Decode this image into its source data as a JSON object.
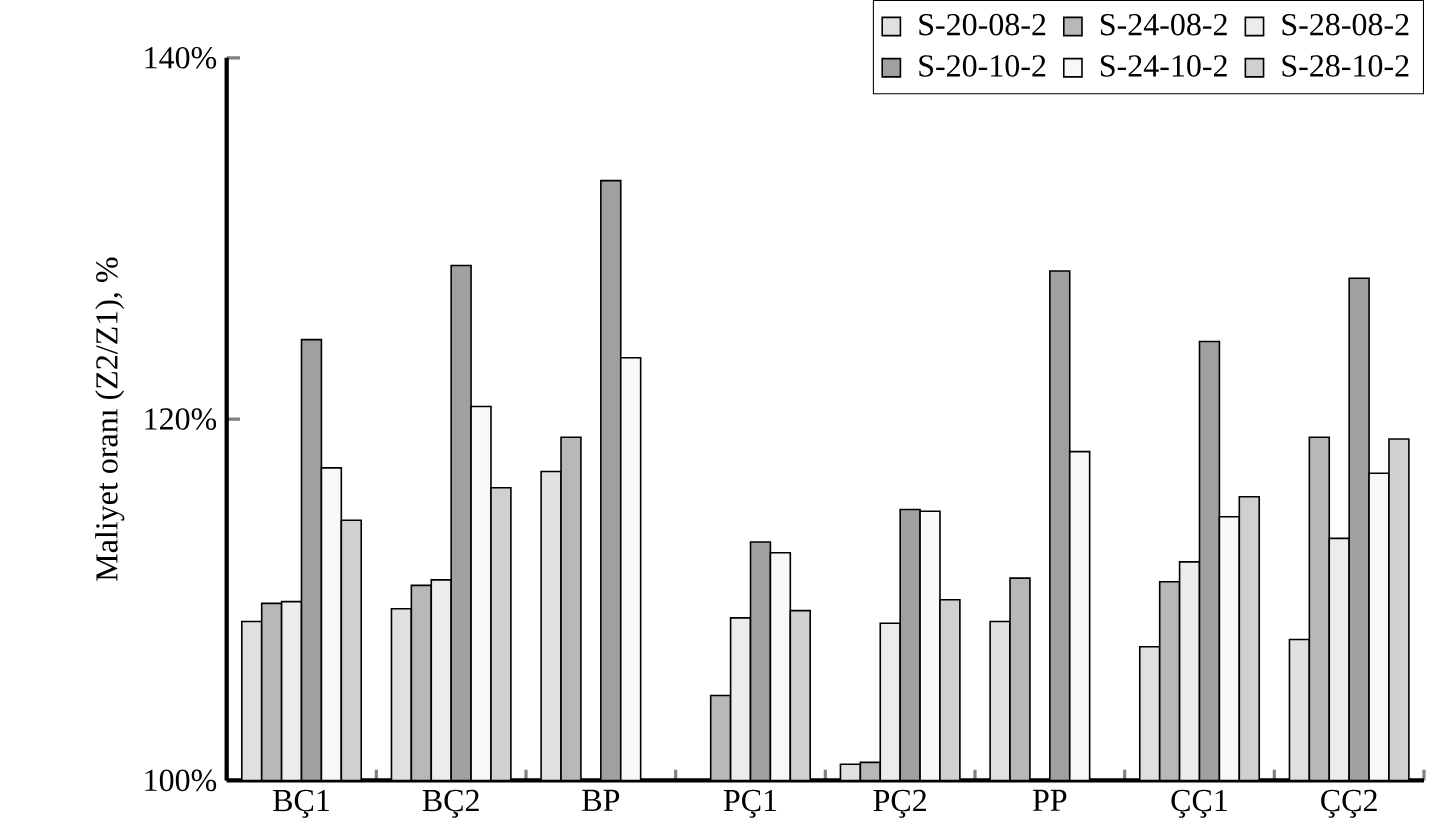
{
  "chart_data": {
    "type": "bar",
    "ylabel": "Maliyet oranı  (Z2/Z1), %",
    "categories": [
      "BÇ1",
      "BÇ2",
      "BP",
      "PÇ1",
      "PÇ2",
      "PP",
      "ÇÇ1",
      "ÇÇ2"
    ],
    "series": [
      {
        "name": "S-20-08-2",
        "color": "#e0e0e0",
        "values": [
          108.8,
          109.5,
          117.1,
          null,
          100.9,
          108.8,
          107.4,
          107.8
        ]
      },
      {
        "name": "S-24-08-2",
        "color": "#b8b8b8",
        "values": [
          109.8,
          110.8,
          119.0,
          104.7,
          101.0,
          111.2,
          111.0,
          119.0
        ]
      },
      {
        "name": "S-28-08-2",
        "color": "#ececec",
        "values": [
          109.9,
          111.1,
          null,
          109.0,
          108.7,
          null,
          112.1,
          113.4
        ]
      },
      {
        "name": "S-20-10-2",
        "color": "#a0a0a0",
        "values": [
          124.4,
          128.5,
          133.2,
          113.2,
          115.0,
          128.2,
          124.3,
          127.8
        ]
      },
      {
        "name": "S-24-10-2",
        "color": "#f8f8f8",
        "values": [
          117.3,
          120.7,
          123.4,
          112.6,
          114.9,
          118.2,
          114.6,
          117.0
        ]
      },
      {
        "name": "S-28-10-2",
        "color": "#d0d0d0",
        "values": [
          114.4,
          116.2,
          null,
          109.4,
          110.0,
          null,
          115.7,
          118.9
        ]
      }
    ],
    "ylim": [
      100,
      140
    ],
    "yticks": [
      {
        "value": 100,
        "label": "100%"
      },
      {
        "value": 120,
        "label": "120%"
      },
      {
        "value": 140,
        "label": "140%"
      }
    ],
    "legend": "top right"
  }
}
